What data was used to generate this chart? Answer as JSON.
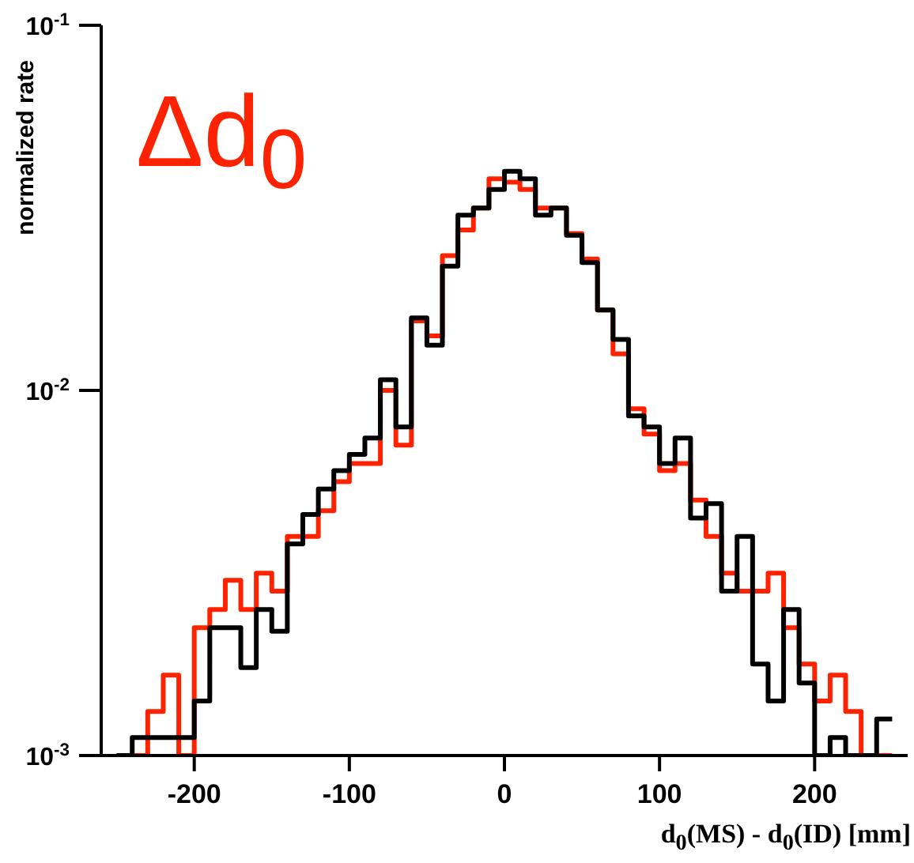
{
  "chart_data": {
    "type": "histogram",
    "xlabel": "d$_{0}$(MS) - d$_{0}$(ID) [mm]",
    "ylabel": "normalized rate",
    "annotations": [
      "Δd$_{0}$"
    ],
    "bins": [
      -250,
      -240,
      -230,
      -220,
      -210,
      -200,
      -190,
      -180,
      -170,
      -160,
      -150,
      -140,
      -130,
      -120,
      -110,
      -100,
      -90,
      -80,
      -70,
      -60,
      -50,
      -40,
      -30,
      -20,
      -10,
      0,
      10,
      20,
      30,
      40,
      50,
      60,
      70,
      80,
      90,
      100,
      110,
      120,
      130,
      140,
      150,
      160,
      170,
      180,
      190,
      200,
      210,
      220,
      230,
      240,
      250
    ],
    "series": [
      {
        "color": "#ff2200",
        "values": [
          0.001,
          0.001,
          0.00132,
          0.00166,
          0.001,
          0.00224,
          0.00251,
          0.00302,
          0.00251,
          0.00316,
          0.00282,
          0.00398,
          0.00398,
          0.00468,
          0.00562,
          0.00631,
          0.00631,
          0.01,
          0.00708,
          0.0155,
          0.0141,
          0.0234,
          0.0275,
          0.0316,
          0.038,
          0.0372,
          0.0355,
          0.0316,
          0.0316,
          0.0269,
          0.0229,
          0.0166,
          0.0126,
          0.00891,
          0.00759,
          0.00603,
          0.00631,
          0.00501,
          0.00398,
          0.00316,
          0.00282,
          0.00282,
          0.00316,
          0.00224,
          0.00178,
          0.00141,
          0.00166,
          0.00132,
          0.001,
          0.001
        ]
      },
      {
        "color": "#000000",
        "values": [
          0.001,
          0.00112,
          0.00112,
          0.00112,
          0.00112,
          0.00141,
          0.00224,
          0.00224,
          0.00174,
          0.00251,
          0.00219,
          0.0038,
          0.00457,
          0.00537,
          0.00603,
          0.00668,
          0.00741,
          0.0107,
          0.00794,
          0.0158,
          0.0133,
          0.0219,
          0.0302,
          0.0316,
          0.0355,
          0.0398,
          0.038,
          0.0302,
          0.0316,
          0.0266,
          0.0224,
          0.0166,
          0.0138,
          0.00851,
          0.00794,
          0.00631,
          0.00741,
          0.00447,
          0.0049,
          0.00282,
          0.00398,
          0.00178,
          0.00141,
          0.00251,
          0.00158,
          0.001,
          0.00112,
          0.001,
          0.001,
          0.00126
        ]
      }
    ],
    "xlim": [
      -260,
      260
    ],
    "xticks": [
      -200,
      -100,
      0,
      100,
      200
    ],
    "ylim": [
      0.001,
      0.1
    ],
    "yticks": [
      {
        "value": 0.001,
        "label": "10$^{-3}$"
      },
      {
        "value": 0.01,
        "label": "10$^{-2}$"
      },
      {
        "value": 0.1,
        "label": "10$^{-1}$"
      }
    ],
    "log": "y",
    "grid": false
  }
}
